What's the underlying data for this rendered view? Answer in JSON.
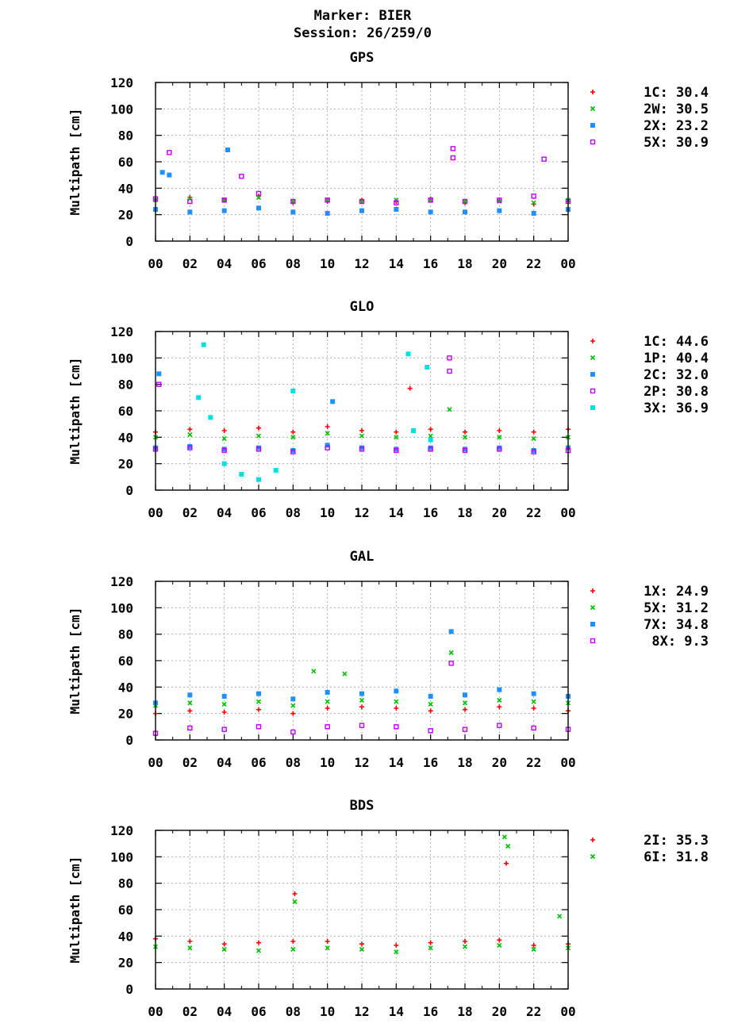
{
  "page": {
    "title_line1": "Marker: BIER",
    "title_line2": "Session: 26/259/0"
  },
  "colors": {
    "red": "#ff0000",
    "green": "#00c000",
    "blue": "#1e90ff",
    "purple": "#c000ff",
    "cyan": "#00e0e0",
    "grid": "#a0a0a0"
  },
  "chart_data": [
    {
      "type": "scatter",
      "title": "GPS",
      "ylabel": "Multipath [cm]",
      "xlabel": "",
      "x_ticks": [
        "00",
        "02",
        "04",
        "06",
        "08",
        "10",
        "12",
        "14",
        "16",
        "18",
        "20",
        "22",
        "00"
      ],
      "y_ticks": [
        "0",
        "20",
        "40",
        "60",
        "80",
        "100",
        "120"
      ],
      "xlim": [
        0,
        24
      ],
      "ylim": [
        0,
        120
      ],
      "grid": true,
      "legend_position": "right",
      "series": [
        {
          "name": "1C",
          "stat": "30.4",
          "color": "red",
          "marker": "plus",
          "values": [
            [
              0,
              32
            ],
            [
              2,
              33
            ],
            [
              4,
              31
            ],
            [
              6,
              34
            ],
            [
              8,
              29
            ],
            [
              10,
              30
            ],
            [
              12,
              31
            ],
            [
              14,
              30
            ],
            [
              16,
              32
            ],
            [
              18,
              29
            ],
            [
              20,
              31
            ],
            [
              22,
              28
            ],
            [
              24,
              30
            ]
          ]
        },
        {
          "name": "2W",
          "stat": "30.5",
          "color": "green",
          "marker": "cross",
          "values": [
            [
              0,
              31
            ],
            [
              2,
              32
            ],
            [
              4,
              31
            ],
            [
              6,
              33
            ],
            [
              8,
              30
            ],
            [
              10,
              31
            ],
            [
              12,
              30
            ],
            [
              14,
              31
            ],
            [
              16,
              31
            ],
            [
              18,
              30
            ],
            [
              20,
              30
            ],
            [
              22,
              29
            ],
            [
              24,
              31
            ]
          ]
        },
        {
          "name": "2X",
          "stat": "23.2",
          "color": "blue",
          "marker": "square",
          "values": [
            [
              0,
              24
            ],
            [
              0.4,
              52
            ],
            [
              0.8,
              50
            ],
            [
              2,
              22
            ],
            [
              4,
              23
            ],
            [
              4.2,
              69
            ],
            [
              6,
              25
            ],
            [
              8,
              22
            ],
            [
              10,
              21
            ],
            [
              12,
              23
            ],
            [
              14,
              24
            ],
            [
              16,
              22
            ],
            [
              18,
              22
            ],
            [
              20,
              23
            ],
            [
              22,
              21
            ],
            [
              24,
              24
            ]
          ]
        },
        {
          "name": "5X",
          "stat": "30.9",
          "color": "purple",
          "marker": "opensquare",
          "values": [
            [
              0,
              32
            ],
            [
              0.8,
              67
            ],
            [
              2,
              30
            ],
            [
              4,
              31
            ],
            [
              5,
              49
            ],
            [
              6,
              36
            ],
            [
              8,
              30
            ],
            [
              10,
              31
            ],
            [
              12,
              30
            ],
            [
              14,
              29
            ],
            [
              16,
              31
            ],
            [
              17.3,
              70
            ],
            [
              17.3,
              63
            ],
            [
              18,
              30
            ],
            [
              20,
              31
            ],
            [
              22,
              34
            ],
            [
              22.6,
              62
            ],
            [
              24,
              30
            ]
          ]
        }
      ]
    },
    {
      "type": "scatter",
      "title": "GLO",
      "ylabel": "Multipath [cm]",
      "xlabel": "",
      "x_ticks": [
        "00",
        "02",
        "04",
        "06",
        "08",
        "10",
        "12",
        "14",
        "16",
        "18",
        "20",
        "22",
        "00"
      ],
      "y_ticks": [
        "0",
        "20",
        "40",
        "60",
        "80",
        "100",
        "120"
      ],
      "xlim": [
        0,
        24
      ],
      "ylim": [
        0,
        120
      ],
      "grid": true,
      "legend_position": "right",
      "series": [
        {
          "name": "1C",
          "stat": "44.6",
          "color": "red",
          "marker": "plus",
          "values": [
            [
              0,
              44
            ],
            [
              2,
              46
            ],
            [
              4,
              45
            ],
            [
              6,
              47
            ],
            [
              8,
              44
            ],
            [
              10,
              48
            ],
            [
              12,
              45
            ],
            [
              14,
              44
            ],
            [
              14.8,
              77
            ],
            [
              16,
              46
            ],
            [
              18,
              44
            ],
            [
              20,
              45
            ],
            [
              22,
              44
            ],
            [
              24,
              46
            ]
          ]
        },
        {
          "name": "1P",
          "stat": "40.4",
          "color": "green",
          "marker": "cross",
          "values": [
            [
              0,
              40
            ],
            [
              2,
              42
            ],
            [
              4,
              39
            ],
            [
              6,
              41
            ],
            [
              8,
              40
            ],
            [
              10,
              43
            ],
            [
              12,
              41
            ],
            [
              14,
              40
            ],
            [
              16,
              41
            ],
            [
              17.1,
              61
            ],
            [
              18,
              40
            ],
            [
              20,
              40
            ],
            [
              22,
              39
            ],
            [
              24,
              40
            ]
          ]
        },
        {
          "name": "2C",
          "stat": "32.0",
          "color": "blue",
          "marker": "square",
          "values": [
            [
              0,
              32
            ],
            [
              0.2,
              88
            ],
            [
              2,
              33
            ],
            [
              4,
              31
            ],
            [
              6,
              32
            ],
            [
              8,
              30
            ],
            [
              10,
              34
            ],
            [
              10.3,
              67
            ],
            [
              12,
              32
            ],
            [
              14,
              31
            ],
            [
              16,
              32
            ],
            [
              18,
              31
            ],
            [
              20,
              32
            ],
            [
              22,
              30
            ],
            [
              24,
              32
            ]
          ]
        },
        {
          "name": "2P",
          "stat": "30.8",
          "color": "purple",
          "marker": "opensquare",
          "values": [
            [
              0,
              31
            ],
            [
              0.2,
              80
            ],
            [
              2,
              32
            ],
            [
              4,
              30
            ],
            [
              6,
              31
            ],
            [
              8,
              29
            ],
            [
              10,
              32
            ],
            [
              12,
              31
            ],
            [
              14,
              30
            ],
            [
              16,
              31
            ],
            [
              17.1,
              100
            ],
            [
              17.1,
              90
            ],
            [
              18,
              30
            ],
            [
              20,
              31
            ],
            [
              22,
              29
            ],
            [
              24,
              30
            ]
          ]
        },
        {
          "name": "3X",
          "stat": "36.9",
          "color": "cyan",
          "marker": "square",
          "values": [
            [
              2.5,
              70
            ],
            [
              2.8,
              110
            ],
            [
              3.2,
              55
            ],
            [
              4,
              20
            ],
            [
              5,
              12
            ],
            [
              6,
              8
            ],
            [
              7,
              15
            ],
            [
              8,
              75
            ],
            [
              14.7,
              103
            ],
            [
              15,
              45
            ],
            [
              15.8,
              93
            ],
            [
              16,
              38
            ]
          ]
        }
      ]
    },
    {
      "type": "scatter",
      "title": "GAL",
      "ylabel": "Multipath [cm]",
      "xlabel": "",
      "x_ticks": [
        "00",
        "02",
        "04",
        "06",
        "08",
        "10",
        "12",
        "14",
        "16",
        "18",
        "20",
        "22",
        "00"
      ],
      "y_ticks": [
        "0",
        "20",
        "40",
        "60",
        "80",
        "100",
        "120"
      ],
      "xlim": [
        0,
        24
      ],
      "ylim": [
        0,
        120
      ],
      "grid": true,
      "legend_position": "right",
      "series": [
        {
          "name": "1X",
          "stat": "24.9",
          "color": "red",
          "marker": "plus",
          "values": [
            [
              0,
              20
            ],
            [
              2,
              22
            ],
            [
              4,
              21
            ],
            [
              6,
              23
            ],
            [
              8,
              20
            ],
            [
              10,
              24
            ],
            [
              12,
              25
            ],
            [
              14,
              24
            ],
            [
              16,
              22
            ],
            [
              18,
              23
            ],
            [
              20,
              25
            ],
            [
              22,
              24
            ],
            [
              24,
              22
            ]
          ]
        },
        {
          "name": "5X",
          "stat": "31.2",
          "color": "green",
          "marker": "cross",
          "values": [
            [
              0,
              26
            ],
            [
              2,
              28
            ],
            [
              4,
              27
            ],
            [
              6,
              29
            ],
            [
              8,
              26
            ],
            [
              9.2,
              52
            ],
            [
              10,
              29
            ],
            [
              11,
              50
            ],
            [
              12,
              30
            ],
            [
              14,
              29
            ],
            [
              16,
              27
            ],
            [
              17.2,
              66
            ],
            [
              18,
              28
            ],
            [
              20,
              30
            ],
            [
              22,
              29
            ],
            [
              24,
              28
            ]
          ]
        },
        {
          "name": "7X",
          "stat": "34.8",
          "color": "blue",
          "marker": "square",
          "values": [
            [
              0,
              28
            ],
            [
              2,
              34
            ],
            [
              4,
              33
            ],
            [
              6,
              35
            ],
            [
              8,
              31
            ],
            [
              10,
              36
            ],
            [
              12,
              35
            ],
            [
              14,
              37
            ],
            [
              16,
              33
            ],
            [
              17.2,
              82
            ],
            [
              18,
              34
            ],
            [
              20,
              38
            ],
            [
              22,
              35
            ],
            [
              24,
              33
            ]
          ]
        },
        {
          "name": "8X",
          "stat": "9.3",
          "color": "purple",
          "marker": "opensquare",
          "values": [
            [
              0,
              5
            ],
            [
              2,
              9
            ],
            [
              4,
              8
            ],
            [
              6,
              10
            ],
            [
              8,
              6
            ],
            [
              10,
              10
            ],
            [
              12,
              11
            ],
            [
              14,
              10
            ],
            [
              16,
              7
            ],
            [
              17.2,
              58
            ],
            [
              18,
              8
            ],
            [
              20,
              11
            ],
            [
              22,
              9
            ],
            [
              24,
              8
            ]
          ]
        }
      ]
    },
    {
      "type": "scatter",
      "title": "BDS",
      "ylabel": "Multipath [cm]",
      "xlabel": "",
      "x_ticks": [
        "00",
        "02",
        "04",
        "06",
        "08",
        "10",
        "12",
        "14",
        "16",
        "18",
        "20",
        "22",
        "00"
      ],
      "y_ticks": [
        "0",
        "20",
        "40",
        "60",
        "80",
        "100",
        "120"
      ],
      "xlim": [
        0,
        24
      ],
      "ylim": [
        0,
        120
      ],
      "grid": true,
      "legend_position": "right",
      "series": [
        {
          "name": "2I",
          "stat": "35.3",
          "color": "red",
          "marker": "plus",
          "values": [
            [
              0,
              38
            ],
            [
              2,
              36
            ],
            [
              4,
              34
            ],
            [
              6,
              35
            ],
            [
              8,
              36
            ],
            [
              8.1,
              72
            ],
            [
              10,
              36
            ],
            [
              12,
              34
            ],
            [
              14,
              33
            ],
            [
              16,
              35
            ],
            [
              18,
              36
            ],
            [
              20,
              37
            ],
            [
              20.4,
              95
            ],
            [
              22,
              33
            ],
            [
              24,
              34
            ]
          ]
        },
        {
          "name": "6I",
          "stat": "31.8",
          "color": "green",
          "marker": "cross",
          "values": [
            [
              0,
              32
            ],
            [
              2,
              31
            ],
            [
              4,
              30
            ],
            [
              6,
              29
            ],
            [
              8,
              30
            ],
            [
              8.1,
              66
            ],
            [
              10,
              31
            ],
            [
              12,
              30
            ],
            [
              14,
              28
            ],
            [
              16,
              31
            ],
            [
              18,
              32
            ],
            [
              20,
              33
            ],
            [
              20.3,
              115
            ],
            [
              20.5,
              108
            ],
            [
              22,
              30
            ],
            [
              23.5,
              55
            ],
            [
              24,
              31
            ]
          ]
        }
      ]
    }
  ]
}
